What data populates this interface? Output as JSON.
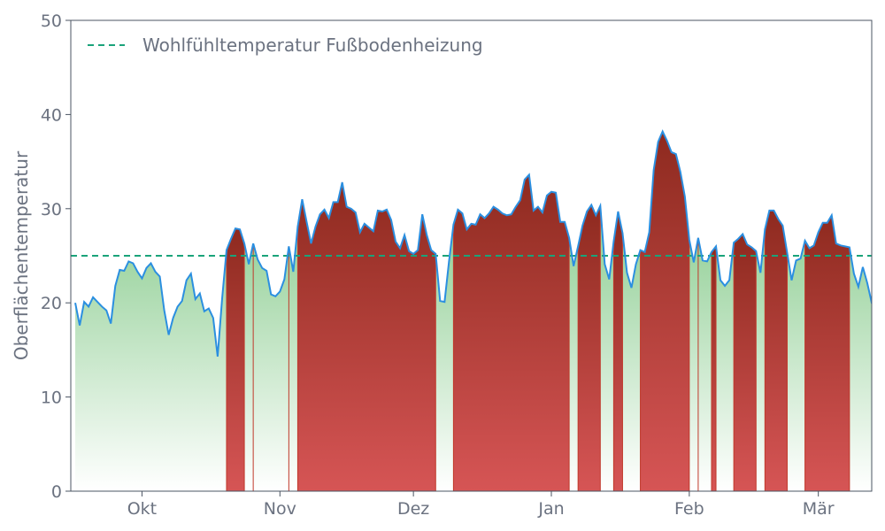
{
  "chart_data": {
    "type": "area",
    "title": "",
    "xlabel": "",
    "ylabel": "Oberflächentemperatur",
    "ylim": [
      0,
      50
    ],
    "yticks": [
      0,
      10,
      20,
      30,
      40,
      50
    ],
    "x_start": "2023-09-15",
    "x_end": "2024-03-13",
    "xticks": [
      {
        "date": "2023-10-01",
        "label": "Okt"
      },
      {
        "date": "2023-11-01",
        "label": "Nov"
      },
      {
        "date": "2023-12-01",
        "label": "Dez"
      },
      {
        "date": "2024-01-01",
        "label": "Jan"
      },
      {
        "date": "2024-02-01",
        "label": "Feb"
      },
      {
        "date": "2024-03-01",
        "label": "Mär"
      }
    ],
    "threshold": {
      "name": "Wohlfühltemperatur Fußbodenheizung",
      "value": 25,
      "color": "#1aa37a"
    },
    "legend_position": "top-left",
    "grid": false,
    "colors": {
      "line": "#2b8fe0",
      "above": "#b83a32",
      "below": "#7cc47f"
    },
    "series": [
      {
        "dates_start": "2023-09-16",
        "step_days": 1,
        "values": [
          20.0,
          17.6,
          20.1,
          19.6,
          20.6,
          20.1,
          19.6,
          19.2,
          17.8,
          21.8,
          23.5,
          23.4,
          24.4,
          24.2,
          23.3,
          22.6,
          23.7,
          24.2,
          23.3,
          22.8,
          19.2,
          16.6,
          18.4,
          19.6,
          20.2,
          22.4,
          23.1,
          20.4,
          21.0,
          19.1,
          19.4,
          18.4,
          14.3,
          20.4,
          25.6,
          26.8,
          27.9,
          27.8,
          26.3,
          24.1,
          26.3,
          24.6,
          23.7,
          23.4,
          20.9,
          20.7,
          21.2,
          22.5,
          26.0,
          23.3,
          28.1,
          31.0,
          28.6,
          26.3,
          28.1,
          29.4,
          29.9,
          29.0,
          30.7,
          30.7,
          32.8,
          30.2,
          30.0,
          29.6,
          27.5,
          28.4,
          28.0,
          27.6,
          29.8,
          29.7,
          29.9,
          28.8,
          26.5,
          25.8,
          27.2,
          25.5,
          25.2,
          25.6,
          29.4,
          27.2,
          25.6,
          25.2,
          20.2,
          20.1,
          24.4,
          28.3,
          29.9,
          29.5,
          27.8,
          28.4,
          28.3,
          29.4,
          29.0,
          29.5,
          30.2,
          29.9,
          29.5,
          29.3,
          29.4,
          30.2,
          30.9,
          33.1,
          33.6,
          29.8,
          30.2,
          29.6,
          31.4,
          31.8,
          31.7,
          28.6,
          28.6,
          26.9,
          23.9,
          26.0,
          28.2,
          29.7,
          30.4,
          29.3,
          30.3,
          24.1,
          22.5,
          26.5,
          29.7,
          27.4,
          23.2,
          21.6,
          24.1,
          25.6,
          25.4,
          27.5,
          34.1,
          37.1,
          38.2,
          37.2,
          36.0,
          35.8,
          33.9,
          31.3,
          26.7,
          24.3,
          26.9,
          24.5,
          24.4,
          25.4,
          26.0,
          22.4,
          21.8,
          22.4,
          26.4,
          26.8,
          27.3,
          26.2,
          25.9,
          25.5,
          23.2,
          27.8,
          29.8,
          29.8,
          28.9,
          28.2,
          25.3,
          22.4,
          24.5,
          24.7,
          26.6,
          25.8,
          26.1,
          27.5,
          28.5,
          28.5,
          29.3,
          26.3,
          26.1,
          26.0,
          25.9,
          23.1,
          21.7,
          23.8,
          22.1,
          20.0,
          20.0,
          18.6
        ]
      }
    ]
  }
}
